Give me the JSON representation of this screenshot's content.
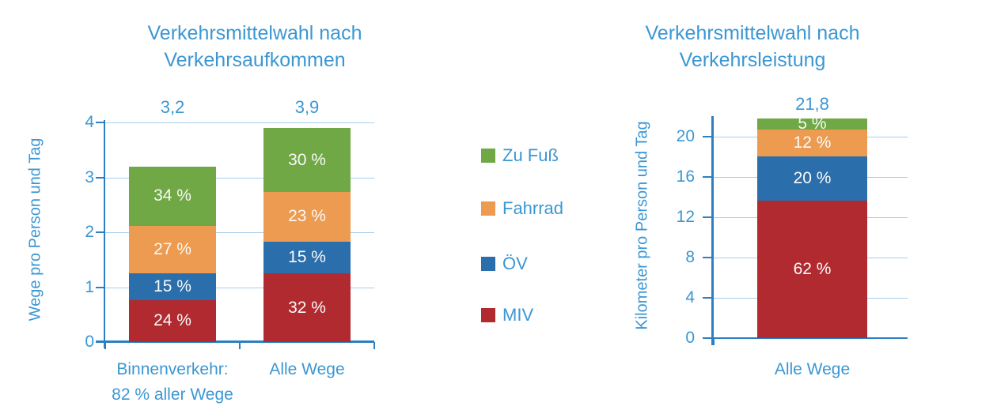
{
  "colors": {
    "text_blue": "#3B97D3",
    "axis_blue": "#2E7FC2",
    "grid_blue": "#A9CDE9",
    "segment_label_white": "#FAFAF7",
    "miv_red": "#B02A30",
    "oev_blue": "#2B6EAC",
    "fahrrad_orange": "#EC9B51",
    "zufuss_green": "#6FA845"
  },
  "legend": {
    "items": [
      {
        "key": "zu-fuss",
        "label": "Zu Fuß",
        "color": "#6FA845"
      },
      {
        "key": "fahrrad",
        "label": "Fahrrad",
        "color": "#EC9B51"
      },
      {
        "key": "oev",
        "label": "ÖV",
        "color": "#2B6EAC"
      },
      {
        "key": "miv",
        "label": "MIV",
        "color": "#B02A30"
      }
    ]
  },
  "chart_data": [
    {
      "type": "bar",
      "stacked": true,
      "title": "Verkehrsmittelwahl nach Verkehrsaufkommen",
      "title_lines": [
        "Verkehrsmittelwahl nach",
        "Verkehrsaufkommen"
      ],
      "ylabel": "Wege pro Person und Tag",
      "ylim": [
        0,
        4
      ],
      "yticks": [
        0,
        1,
        2,
        3,
        4
      ],
      "grid": true,
      "categories": [
        "Binnenverkehr: 82 % aller Wege",
        "Alle Wege"
      ],
      "category_label_lines": [
        [
          "Binnenverkehr:",
          "82 % aller Wege"
        ],
        [
          "Alle Wege"
        ]
      ],
      "bar_totals": [
        3.2,
        3.9
      ],
      "bar_total_labels": [
        "3,2",
        "3,9"
      ],
      "series": [
        {
          "name": "MIV",
          "color": "#B02A30",
          "percents": [
            24,
            32
          ],
          "labels": [
            "24 %",
            "32 %"
          ]
        },
        {
          "name": "ÖV",
          "color": "#2B6EAC",
          "percents": [
            15,
            15
          ],
          "labels": [
            "15 %",
            "15 %"
          ]
        },
        {
          "name": "Fahrrad",
          "color": "#EC9B51",
          "percents": [
            27,
            23
          ],
          "labels": [
            "27 %",
            "23 %"
          ]
        },
        {
          "name": "Zu Fuß",
          "color": "#6FA845",
          "percents": [
            34,
            30
          ],
          "labels": [
            "34 %",
            "30 %"
          ]
        }
      ]
    },
    {
      "type": "bar",
      "stacked": true,
      "title": "Verkehrsmittelwahl nach Verkehrsleistung",
      "title_lines": [
        "Verkehrsmittelwahl nach",
        "Verkehrsleistung"
      ],
      "ylabel": "Kilometer pro Person und Tag",
      "ylim": [
        0,
        22
      ],
      "yticks": [
        0,
        4,
        8,
        12,
        16,
        20
      ],
      "grid": true,
      "categories": [
        "Alle Wege"
      ],
      "category_label_lines": [
        [
          "Alle Wege"
        ]
      ],
      "bar_totals": [
        21.8
      ],
      "bar_total_labels": [
        "21,8"
      ],
      "series": [
        {
          "name": "MIV",
          "color": "#B02A30",
          "percents": [
            62
          ],
          "labels": [
            "62 %"
          ]
        },
        {
          "name": "ÖV",
          "color": "#2B6EAC",
          "percents": [
            20
          ],
          "labels": [
            "20 %"
          ]
        },
        {
          "name": "Fahrrad",
          "color": "#EC9B51",
          "percents": [
            12
          ],
          "labels": [
            "12 %"
          ]
        },
        {
          "name": "Zu Fuß",
          "color": "#6FA845",
          "percents": [
            5
          ],
          "labels": [
            "5 %"
          ]
        }
      ]
    }
  ]
}
